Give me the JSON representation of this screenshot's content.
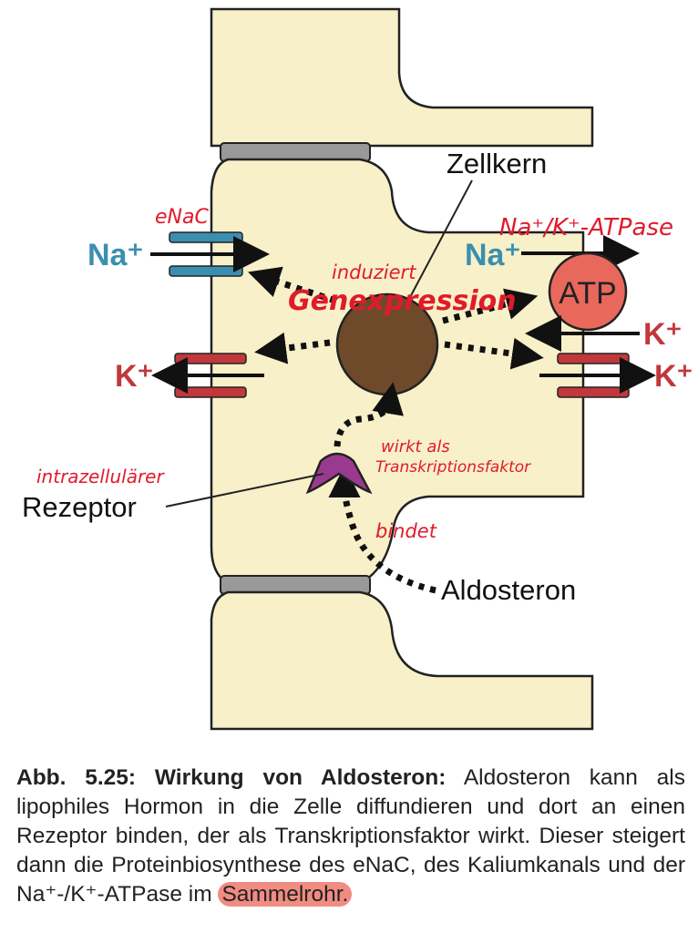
{
  "colors": {
    "cell": "#f8f0c8",
    "outline": "#222222",
    "junction": "#999999",
    "na": "#3a8fb0",
    "k": "#c0383c",
    "nucleus": "#6e4a2a",
    "receptor": "#9a3a8e",
    "atp": "#e8695c",
    "annotation": "#e01b2b",
    "highlight": "#f08c82"
  },
  "diagram": {
    "ions": {
      "na_left": "Na⁺",
      "na_right": "Na⁺",
      "k_left": "K⁺",
      "k_right_in": "K⁺",
      "k_right_out": "K⁺"
    },
    "labels": {
      "nucleus": "Zellkern",
      "atp": "ATP",
      "receptor": "Rezeptor",
      "hormone": "Aldosteron"
    },
    "annotations": {
      "enac": "eNaC",
      "atpase": "Na⁺/K⁺-ATPase",
      "induziert": "induziert",
      "genexpression": "Genexpression",
      "intrazellulaer": "intrazellulärer",
      "wirkt_als": "wirkt als",
      "transkriptionsfaktor": "Transkriptionsfaktor",
      "bindet": "bindet"
    }
  },
  "caption": {
    "title": "Abb. 5.25: Wirkung von Aldosteron:",
    "text": "Aldosteron kann als lipophiles Hormon in die Zelle diffundieren und dort an einen Rezeptor binden, der als Transkriptionsfaktor wirkt. Dieser steigert dann die Proteinbiosynthese des eNaC, des Kaliumkanals und der Na⁺-/K⁺-ATPase im",
    "highlighted": "Sammelrohr."
  }
}
